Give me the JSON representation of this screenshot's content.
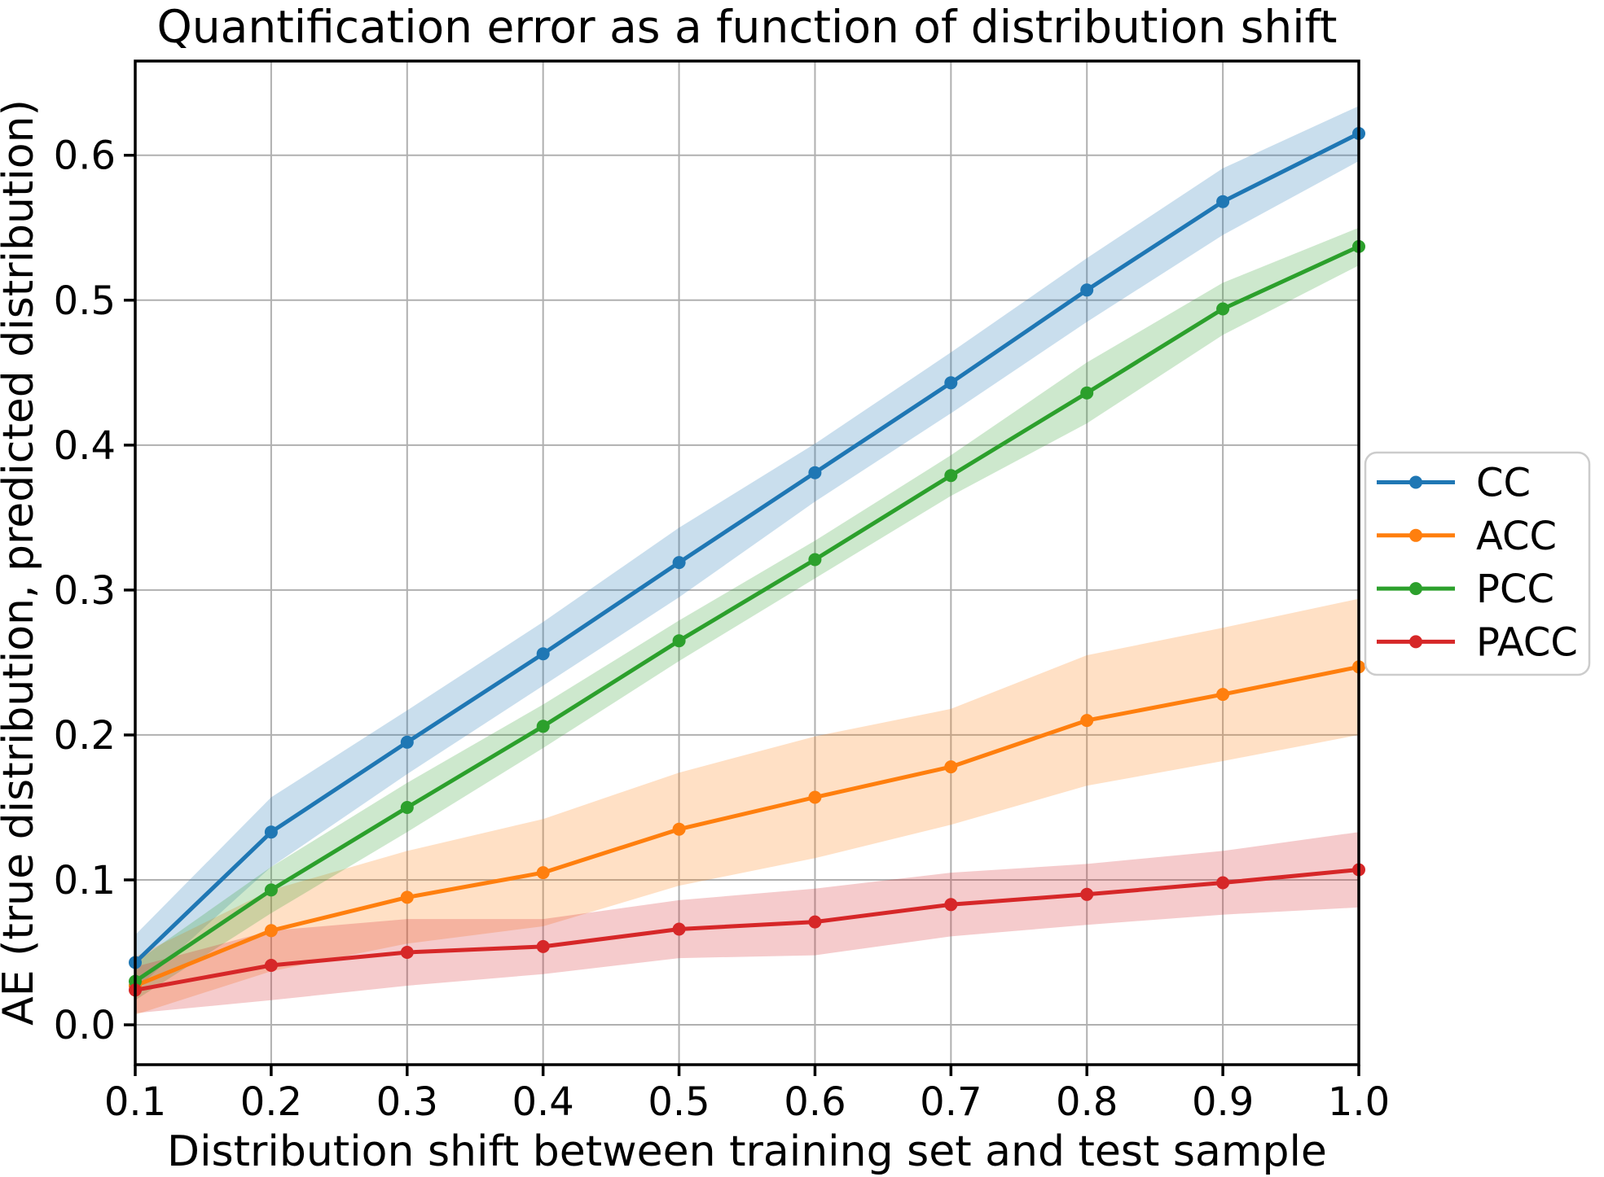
{
  "figure": {
    "background": "#ffffff"
  },
  "chart_data": {
    "type": "line",
    "title": "Quantification error as a function of distribution shift",
    "xlabel": "Distribution shift between training set and test sample",
    "ylabel": "AE (true distribution, predicted distribution)",
    "x": [
      0.1,
      0.2,
      0.3,
      0.4,
      0.5,
      0.6,
      0.7,
      0.8,
      0.9,
      1.0
    ],
    "x_tick_labels": [
      "0.1",
      "0.2",
      "0.3",
      "0.4",
      "0.5",
      "0.6",
      "0.7",
      "0.8",
      "0.9",
      "1.0"
    ],
    "y_tick_values": [
      0.0,
      0.1,
      0.2,
      0.3,
      0.4,
      0.5,
      0.6
    ],
    "y_tick_labels": [
      "0.0",
      "0.1",
      "0.2",
      "0.3",
      "0.4",
      "0.5",
      "0.6"
    ],
    "xlim": [
      0.1,
      1.0
    ],
    "ylim": [
      -0.0275,
      0.665
    ],
    "grid": true,
    "grid_color": "#b0b0b0",
    "spine_color": "#000000",
    "band_alpha": 0.24,
    "legend": {
      "position": "right-outside",
      "entries": [
        "CC",
        "ACC",
        "PCC",
        "PACC"
      ],
      "border_color": "#cccccc",
      "background": "#ffffff"
    },
    "series": [
      {
        "name": "CC",
        "color": "#1f77b4",
        "values": [
          0.043,
          0.133,
          0.195,
          0.256,
          0.319,
          0.381,
          0.443,
          0.507,
          0.568,
          0.615
        ],
        "err": [
          0.019,
          0.024,
          0.022,
          0.022,
          0.024,
          0.02,
          0.021,
          0.022,
          0.023,
          0.019
        ]
      },
      {
        "name": "ACC",
        "color": "#ff7f0e",
        "values": [
          0.027,
          0.065,
          0.088,
          0.105,
          0.135,
          0.157,
          0.178,
          0.21,
          0.228,
          0.247
        ],
        "err": [
          0.02,
          0.028,
          0.032,
          0.037,
          0.039,
          0.042,
          0.04,
          0.045,
          0.046,
          0.047
        ]
      },
      {
        "name": "PCC",
        "color": "#2ca02c",
        "values": [
          0.03,
          0.093,
          0.15,
          0.206,
          0.265,
          0.321,
          0.379,
          0.436,
          0.494,
          0.537
        ],
        "err": [
          0.013,
          0.016,
          0.017,
          0.015,
          0.014,
          0.013,
          0.014,
          0.021,
          0.018,
          0.013
        ]
      },
      {
        "name": "PACC",
        "color": "#d62728",
        "values": [
          0.024,
          0.041,
          0.05,
          0.054,
          0.066,
          0.071,
          0.083,
          0.09,
          0.098,
          0.107
        ],
        "err": [
          0.016,
          0.024,
          0.023,
          0.019,
          0.02,
          0.023,
          0.022,
          0.021,
          0.022,
          0.026
        ]
      }
    ]
  }
}
